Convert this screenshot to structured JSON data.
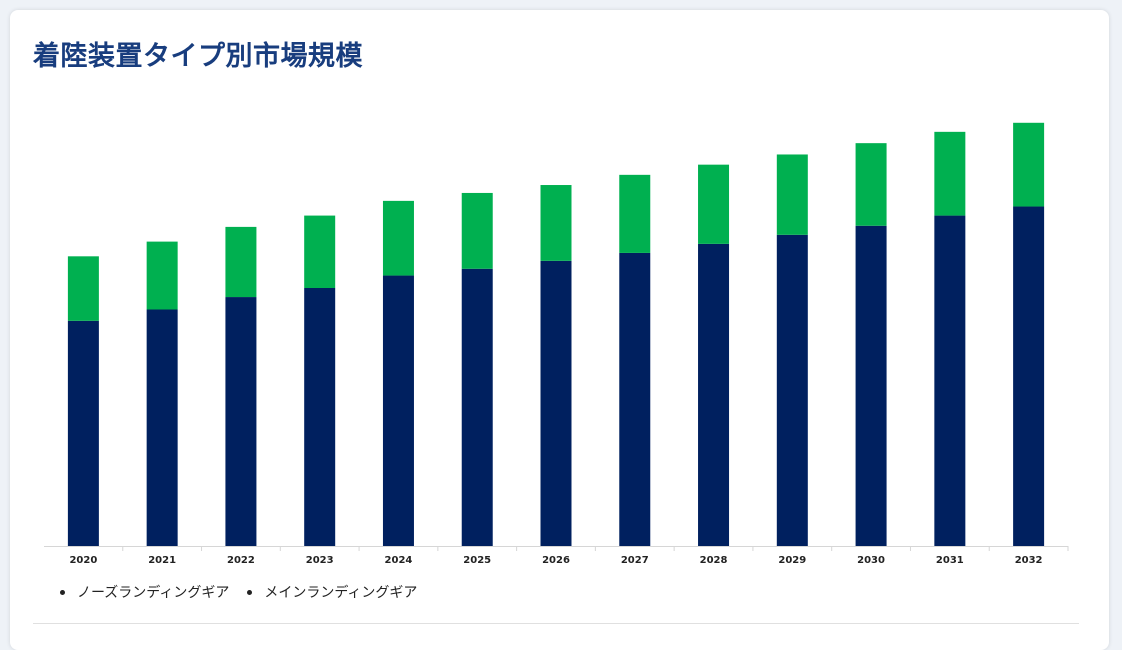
{
  "title": "着陸装置タイプ別市場規模",
  "colors": {
    "main": "#00205f",
    "nose": "#00b050",
    "title": "#183d7e"
  },
  "chart_data": {
    "type": "bar",
    "stacked": true,
    "categories": [
      "2020",
      "2021",
      "2022",
      "2023",
      "2024",
      "2025",
      "2026",
      "2027",
      "2028",
      "2029",
      "2030",
      "2031",
      "2032"
    ],
    "series": [
      {
        "name": "メインランディングギア",
        "color": "#00205f",
        "values": [
          199,
          209,
          220,
          228,
          239,
          245,
          252,
          259,
          267,
          275,
          283,
          292,
          300
        ]
      },
      {
        "name": "ノーズランディングギア",
        "color": "#00b050",
        "values": [
          57,
          60,
          62,
          64,
          66,
          67,
          67,
          69,
          70,
          71,
          73,
          74,
          74
        ]
      }
    ],
    "ylim": [
      0,
      380
    ],
    "grid": false,
    "y_axis_visible": false,
    "legend_position": "bottom-left"
  }
}
